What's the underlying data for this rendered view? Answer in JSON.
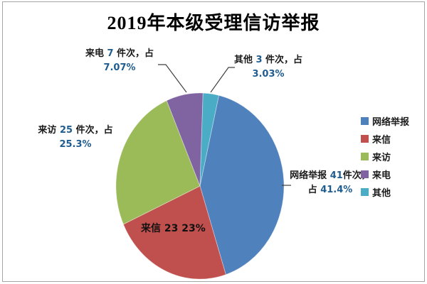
{
  "chart_data": {
    "type": "pie",
    "title": "2019年本级受理信访举报",
    "total": 99,
    "start_angle_deg": 13,
    "legend_position": "right",
    "slices": [
      {
        "label": "网络举报",
        "value": 41,
        "pct_text": "41.4%",
        "color": "#4F81BD"
      },
      {
        "label": "来信",
        "value": 23,
        "pct_text": "23%",
        "color": "#C0504D"
      },
      {
        "label": "来访",
        "value": 25,
        "pct_text": "25.3%",
        "color": "#9BBB59"
      },
      {
        "label": "来电",
        "value": 7,
        "pct_text": "7.07%",
        "color": "#8064A2"
      },
      {
        "label": "其他",
        "value": 3,
        "pct_text": "3.03%",
        "color": "#4BACC6"
      }
    ]
  },
  "callouts": {
    "phone": {
      "text_black": "来电 ",
      "num": "7",
      "text_black2": " 件次，占",
      "line2": "7.07%"
    },
    "other": {
      "text_black": "其他 ",
      "num": "3",
      "text_black2": " 件次，占",
      "line2": "3.03%"
    },
    "visit": {
      "text_black": "来访 ",
      "num": "25",
      "text_black2": " 件次，占",
      "line2": "25.3%"
    },
    "web": {
      "text_black": "网络举报 ",
      "num": "41",
      "text_black2": "件次，",
      "line2_black": "占 ",
      "line2_num": "41.4%"
    },
    "letter": {
      "text_black": "来信 ",
      "num": "23 23%"
    }
  },
  "colors": {
    "number_text": "#1F5C8F",
    "leader_line": "#404040",
    "chart_border": "#A6A6A6"
  }
}
